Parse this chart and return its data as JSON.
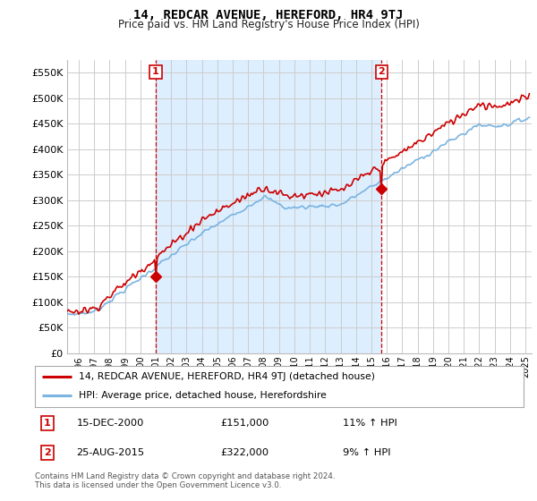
{
  "title": "14, REDCAR AVENUE, HEREFORD, HR4 9TJ",
  "subtitle": "Price paid vs. HM Land Registry's House Price Index (HPI)",
  "legend_line1": "14, REDCAR AVENUE, HEREFORD, HR4 9TJ (detached house)",
  "legend_line2": "HPI: Average price, detached house, Herefordshire",
  "annotation1_label": "1",
  "annotation1_date": "15-DEC-2000",
  "annotation1_price": "£151,000",
  "annotation1_hpi": "11% ↑ HPI",
  "annotation1_year": 2001.0,
  "annotation1_value": 151000,
  "annotation2_label": "2",
  "annotation2_date": "25-AUG-2015",
  "annotation2_price": "£322,000",
  "annotation2_hpi": "9% ↑ HPI",
  "annotation2_year": 2015.65,
  "annotation2_value": 322000,
  "footer": "Contains HM Land Registry data © Crown copyright and database right 2024.\nThis data is licensed under the Open Government Licence v3.0.",
  "hpi_color": "#7ab4e0",
  "price_color": "#cc0000",
  "shade_color": "#ddeeff",
  "annotation_color": "#cc0000",
  "background_color": "#ffffff",
  "grid_color": "#cccccc",
  "ylim": [
    0,
    575000
  ],
  "yticks": [
    0,
    50000,
    100000,
    150000,
    200000,
    250000,
    300000,
    350000,
    400000,
    450000,
    500000,
    550000
  ],
  "xlim_start": 1995.25,
  "xlim_end": 2025.4
}
